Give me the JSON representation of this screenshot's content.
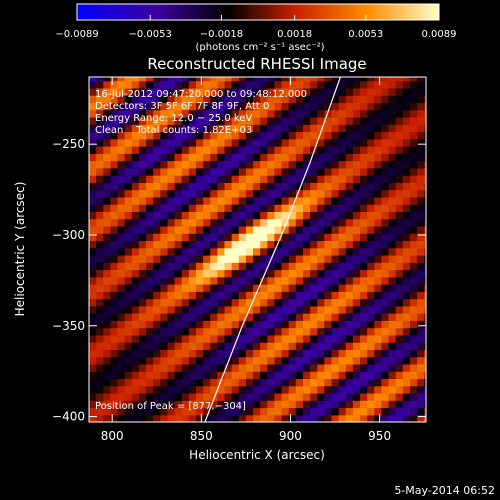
{
  "chart_data": {
    "type": "heatmap",
    "title": "Reconstructed RHESSI Image",
    "xlabel": "Heliocentric X (arcsec)",
    "ylabel": "Heliocentric Y (arcsec)",
    "xlim": [
      787,
      976
    ],
    "ylim": [
      -403,
      -213
    ],
    "x_ticks": [
      800,
      850,
      900,
      950
    ],
    "y_ticks": [
      -250,
      -300,
      -350,
      -400
    ],
    "x_tick_labels": [
      "800",
      "850",
      "900",
      "950"
    ],
    "y_tick_labels": [
      "−250",
      "−300",
      "−350",
      "−400"
    ],
    "colorbar": {
      "range": [
        -0.0089,
        0.0089
      ],
      "ticks": [
        -0.0089,
        -0.0053,
        -0.0018,
        0.0018,
        0.0053,
        0.0089
      ],
      "tick_labels": [
        "−0.0089",
        "−0.0053",
        "−0.0018",
        "0.0018",
        "0.0053",
        "0.0089"
      ],
      "unit_label": "(photons cm⁻² s⁻¹ asec⁻²)",
      "colormap": [
        "#0000ff",
        "#3c00a0",
        "#000000",
        "#c81e00",
        "#ff8c00",
        "#ffffc8"
      ]
    },
    "annotations": [
      "16-Jul-2012 09:47:20.000 to 09:48:12.000",
      "Detectors: 3F 5F 6F 7F 8F 9F, Att 0",
      "Energy Range: 12.0 − 25.0 keV",
      "Clean    Total counts: 1.82E+03"
    ],
    "peak": {
      "x": 877,
      "y": -304,
      "label": "Position of Peak = [877,−304]"
    },
    "limb_line": [
      [
        852,
        -403
      ],
      [
        873,
        -350
      ],
      [
        895,
        -300
      ],
      [
        911,
        -260
      ],
      [
        928,
        -213
      ]
    ],
    "stripes": {
      "angle_deg": 35,
      "period_arcsec": 28
    }
  },
  "footer": {
    "date": "5-May-2014 06:52"
  },
  "colors": {
    "background": "#000000",
    "foreground": "#ffffff"
  }
}
